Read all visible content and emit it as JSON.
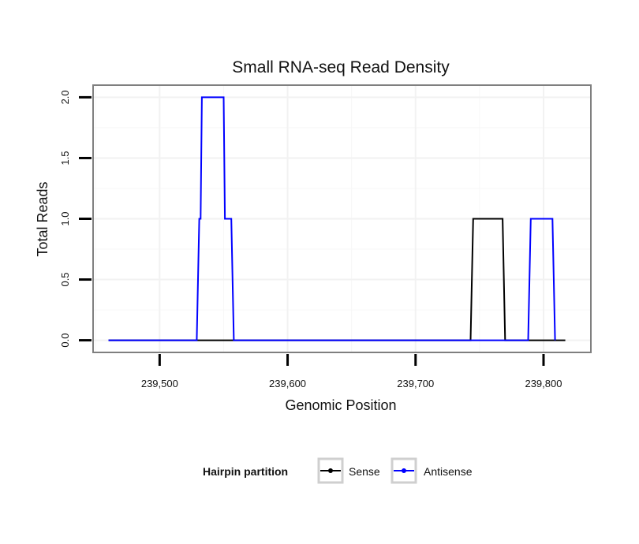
{
  "chart_data": {
    "type": "line",
    "title": "Small RNA-seq Read Density",
    "xlabel": "Genomic Position",
    "ylabel": "Total Reads",
    "xlim": [
      239448,
      239837
    ],
    "ylim": [
      -0.1,
      2.1
    ],
    "x_ticks": [
      239500,
      239600,
      239700,
      239800
    ],
    "x_tick_labels": [
      "239,500",
      "239,600",
      "239,700",
      "239,800"
    ],
    "y_ticks": [
      0,
      0.5,
      1,
      1.5,
      2
    ],
    "y_tick_labels": [
      "0.0",
      "0.5",
      "1.0",
      "1.5",
      "2.0"
    ],
    "grid": true,
    "legend": {
      "title": "Hairpin partition",
      "position": "bottom"
    },
    "series": [
      {
        "name": "Sense",
        "color": "#000000",
        "x": [
          239460,
          239743,
          239745,
          239768,
          239770,
          239817
        ],
        "y": [
          0,
          0,
          1,
          1,
          0,
          0
        ]
      },
      {
        "name": "Antisense",
        "color": "#0000ff",
        "x": [
          239460,
          239529,
          239531,
          239532,
          239533,
          239550,
          239551,
          239556,
          239558,
          239743,
          239745,
          239768,
          239770,
          239788,
          239790,
          239807,
          239809
        ],
        "y": [
          0,
          0,
          1,
          1,
          2,
          2,
          1,
          1,
          0,
          0,
          0,
          0,
          0,
          0,
          1,
          1,
          0
        ]
      }
    ]
  }
}
